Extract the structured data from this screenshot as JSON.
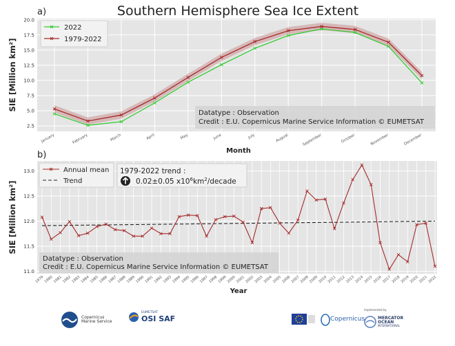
{
  "title": "Southern Hemisphere Sea Ice Extent",
  "chart_data": [
    {
      "panel": "a)",
      "type": "line",
      "ylabel": "SIE [Million km²]",
      "xlabel": "Month",
      "categories": [
        "January",
        "February",
        "March",
        "April",
        "May",
        "June",
        "July",
        "August",
        "September",
        "October",
        "November",
        "December"
      ],
      "ylim": [
        1.6,
        20.2
      ],
      "yticks": [
        "2.5",
        "5.0",
        "7.5",
        "10.0",
        "12.5",
        "15.0",
        "17.5",
        "20.0"
      ],
      "grid": true,
      "legend_position": "top-left",
      "series": [
        {
          "name": "2022",
          "values": [
            4.5,
            2.6,
            3.2,
            6.3,
            9.7,
            12.6,
            15.3,
            17.4,
            18.5,
            17.9,
            15.6,
            9.6
          ],
          "color": "#33cc33"
        },
        {
          "name": "1979-2022",
          "values": [
            5.3,
            3.3,
            4.3,
            7.1,
            10.5,
            13.8,
            16.4,
            18.2,
            18.9,
            18.4,
            16.3,
            10.8
          ],
          "color": "#a52a2a",
          "band": 0.6
        }
      ],
      "annotation": [
        "Datatype : Observation",
        "Credit : E.U. Copernicus Marine Service Information © EUMETSAT"
      ]
    },
    {
      "panel": "b)",
      "type": "line",
      "ylabel": "SIE [Million km²]",
      "xlabel": "Year",
      "x": [
        1979,
        1980,
        1981,
        1982,
        1983,
        1984,
        1985,
        1986,
        1987,
        1988,
        1989,
        1990,
        1991,
        1992,
        1993,
        1994,
        1995,
        1996,
        1997,
        1998,
        1999,
        2000,
        2001,
        2002,
        2003,
        2004,
        2005,
        2006,
        2007,
        2008,
        2009,
        2010,
        2011,
        2012,
        2013,
        2014,
        2015,
        2016,
        2017,
        2018,
        2019,
        2020,
        2021,
        2022
      ],
      "ylim": [
        10.95,
        13.2
      ],
      "yticks": [
        "11.0",
        "11.5",
        "12.0",
        "12.5",
        "13.0"
      ],
      "grid": true,
      "legend_position": "top-left",
      "series": [
        {
          "name": "Annual mean",
          "values": [
            12.08,
            11.64,
            11.77,
            11.99,
            11.71,
            11.76,
            11.89,
            11.94,
            11.83,
            11.81,
            11.7,
            11.7,
            11.86,
            11.75,
            11.75,
            12.09,
            12.12,
            12.11,
            11.7,
            12.03,
            12.09,
            12.1,
            11.98,
            11.57,
            12.25,
            12.27,
            11.96,
            11.76,
            12.02,
            12.6,
            12.42,
            12.44,
            11.85,
            12.36,
            12.83,
            13.12,
            12.73,
            11.57,
            11.04,
            11.33,
            11.19,
            11.93,
            11.96,
            11.1
          ],
          "color": "#a52a2a"
        },
        {
          "name": "Trend",
          "trend_start": 11.91,
          "trend_end": 12.0,
          "color": "#222222",
          "style": "dashed"
        }
      ],
      "trend_box": {
        "label": "1979-2022 trend :",
        "value_prefix": "0.02±0.05 x10",
        "value_exp": "6",
        "value_suffix": "km",
        "value_exp2": "2",
        "value_end": "/decade",
        "arrow_icon": "arrow-up-circle-icon"
      },
      "annotation": [
        "Datatype : Observation",
        "Credit : E.U. Copernicus Marine Service Information © EUMETSAT"
      ]
    }
  ],
  "logos": [
    {
      "name": "copernicus-marine-logo",
      "lines": [
        "Copernicus",
        "Marine Service"
      ]
    },
    {
      "name": "osisaf-logo",
      "top": "EUMETSAT",
      "main": "OSI SAF"
    },
    {
      "name": "eu-flag-logo"
    },
    {
      "name": "copernicus-logo",
      "main": "Copernicus"
    },
    {
      "name": "mercator-ocean-logo",
      "top": "implemented by",
      "lines": [
        "MERCATOR",
        "OCEAN",
        "INTERNATIONAL"
      ]
    }
  ]
}
